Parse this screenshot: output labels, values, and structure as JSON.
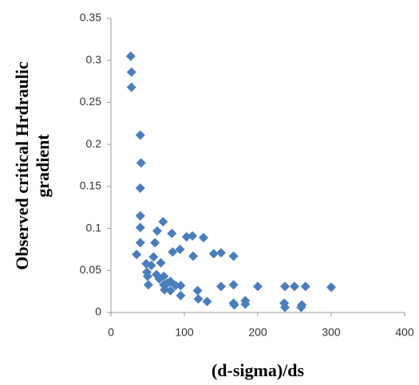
{
  "chart_data": {
    "type": "scatter",
    "xlabel": "(d-sigma)/ds",
    "ylabel": [
      "Observed critical Hrdraulic",
      "gradient"
    ],
    "xlim": [
      0,
      400
    ],
    "xticks": [
      0,
      100,
      200,
      300,
      400
    ],
    "ylim": [
      0,
      0.35
    ],
    "yticks": [
      0,
      0.05,
      0.1,
      0.15,
      0.2,
      0.25,
      0.3,
      0.35
    ],
    "color": "#4a7ebb",
    "series": [
      {
        "x": [
          27,
          28,
          28,
          40,
          41,
          40,
          40,
          40,
          40,
          35,
          48,
          49,
          50,
          51,
          55,
          58,
          60,
          62,
          66,
          63,
          71,
          68,
          72,
          73,
          72,
          77,
          81,
          81,
          83,
          84,
          88,
          94,
          95,
          95,
          103,
          111,
          112,
          126,
          118,
          119,
          131,
          140,
          150,
          150,
          167,
          167,
          167,
          168,
          183,
          183,
          200,
          237,
          236,
          237,
          250,
          265,
          260,
          259,
          300
        ],
        "values": [
          0.305,
          0.286,
          0.268,
          0.211,
          0.178,
          0.148,
          0.115,
          0.101,
          0.083,
          0.069,
          0.058,
          0.048,
          0.043,
          0.033,
          0.056,
          0.066,
          0.083,
          0.045,
          0.04,
          0.097,
          0.108,
          0.059,
          0.033,
          0.027,
          0.043,
          0.035,
          0.026,
          0.037,
          0.094,
          0.072,
          0.032,
          0.075,
          0.032,
          0.02,
          0.09,
          0.091,
          0.067,
          0.089,
          0.026,
          0.016,
          0.013,
          0.07,
          0.071,
          0.031,
          0.067,
          0.033,
          0.011,
          0.009,
          0.014,
          0.01,
          0.031,
          0.031,
          0.011,
          0.006,
          0.031,
          0.031,
          0.009,
          0.006,
          0.03
        ]
      }
    ]
  }
}
